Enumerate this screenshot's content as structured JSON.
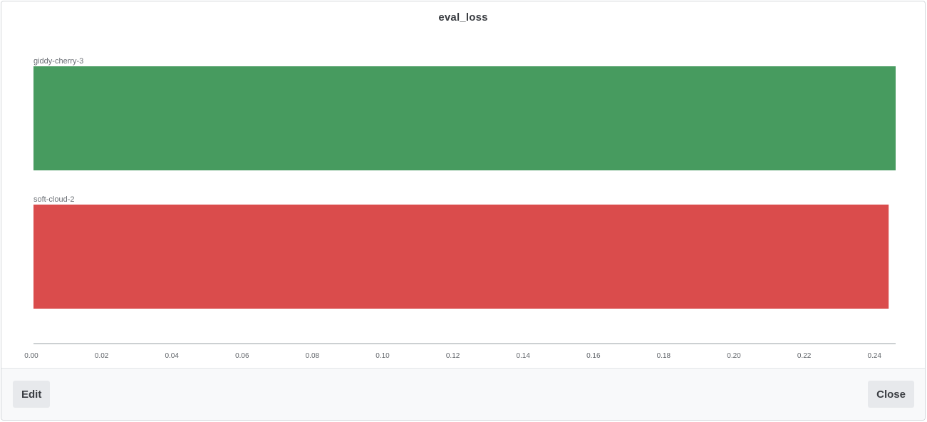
{
  "modal": {
    "edit_label": "Edit",
    "close_label": "Close"
  },
  "colors": {
    "giddy-cherry-3": "#479b5f",
    "soft-cloud-2": "#da4c4c",
    "axis": "#9aa0a6"
  },
  "chart_data": {
    "type": "bar",
    "orientation": "horizontal",
    "title": "eval_loss",
    "xlabel": "",
    "ylabel": "",
    "categories": [
      "giddy-cherry-3",
      "soft-cloud-2"
    ],
    "values": [
      0.2465,
      0.2445
    ],
    "colors": [
      "#479b5f",
      "#da4c4c"
    ],
    "xlim": [
      0,
      0.2465
    ],
    "xticks": [
      "0.00",
      "0.02",
      "0.04",
      "0.06",
      "0.08",
      "0.10",
      "0.12",
      "0.14",
      "0.16",
      "0.18",
      "0.20",
      "0.22",
      "0.24"
    ],
    "grid": false,
    "legend": "none"
  }
}
